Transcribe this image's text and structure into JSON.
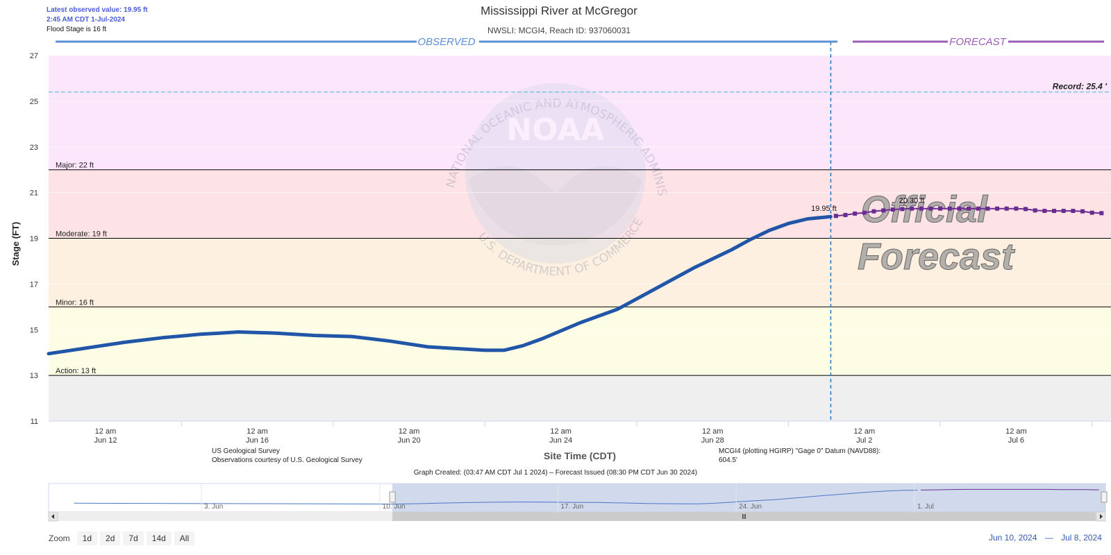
{
  "latest": {
    "line1": "Latest observed value: 19.95 ft",
    "line2": "2:45 AM CDT 1-Jul-2024",
    "line3": "Flood Stage is 16 ft"
  },
  "title": "Mississippi River at McGregor",
  "subtitle": "NWSLI: MCGI4, Reach ID: 937060031",
  "observed_label": "OBSERVED",
  "forecast_label": "FORECAST",
  "record_label": "Record: 25.4 '",
  "watermark": {
    "noaa": "NOAA",
    "ring_top": "NATIONAL OCEANIC AND ATMOSPHERIC ADMINISTRATION",
    "ring_bottom": "U.S. DEPARTMENT OF COMMERCE",
    "official_1": "Official",
    "official_2": "Forecast"
  },
  "credits": {
    "line1": "US Geological Survey",
    "line2": "Observations courtesy of U.S. Geological Survey",
    "datum": "MCGI4 (plotting HGIRP) \"Gage 0\" Datum (NAVD88): 604.5'"
  },
  "graph_created": "Graph Created: (03:47 AM CDT Jul 1 2024) – Forecast Issued (08:30 PM CDT Jun 30 2024)",
  "navigator_labels": [
    "3. Jun",
    "10. Jun",
    "17. Jun",
    "24. Jun",
    "1. Jul"
  ],
  "zoom": {
    "label": "Zoom",
    "buttons": [
      "1d",
      "2d",
      "7d",
      "14d",
      "All"
    ]
  },
  "range": {
    "from": "Jun 10, 2024",
    "sep": "—",
    "to": "Jul 8, 2024"
  },
  "colors": {
    "observed": "#2155a8",
    "forecast": "#6a2c91",
    "major_band": "#fbe6fb",
    "moderate_band": "#fde3e5",
    "minor_band": "#fdf0e0",
    "action_band": "#fdfde6",
    "below_band": "#efefef",
    "record_line": "#5bc0de"
  },
  "chart_data": {
    "type": "line",
    "title": "Mississippi River at McGregor",
    "xlabel": "Site Time (CDT)",
    "ylabel": "Stage (FT)",
    "ylim": [
      11,
      27
    ],
    "xlim_days": [
      "2024-06-10 12:00",
      "2024-07-08 12:00"
    ],
    "yticks": [
      11,
      13,
      15,
      17,
      19,
      21,
      23,
      25,
      27
    ],
    "xtick_labels": [
      {
        "date": "2024-06-12",
        "line1": "12 am",
        "line2": "Jun 12"
      },
      {
        "date": "2024-06-16",
        "line1": "12 am",
        "line2": "Jun 16"
      },
      {
        "date": "2024-06-20",
        "line1": "12 am",
        "line2": "Jun 20"
      },
      {
        "date": "2024-06-24",
        "line1": "12 am",
        "line2": "Jun 24"
      },
      {
        "date": "2024-06-28",
        "line1": "12 am",
        "line2": "Jun 28"
      },
      {
        "date": "2024-07-02",
        "line1": "12 am",
        "line2": "Jul 2"
      },
      {
        "date": "2024-07-06",
        "line1": "12 am",
        "line2": "Jul 6"
      }
    ],
    "thresholds": [
      {
        "name": "Major",
        "value": 22,
        "label": "Major: 22 ft"
      },
      {
        "name": "Moderate",
        "value": 19,
        "label": "Moderate: 19 ft"
      },
      {
        "name": "Minor",
        "value": 16,
        "label": "Minor: 16 ft"
      },
      {
        "name": "Action",
        "value": 13,
        "label": "Action: 13 ft"
      }
    ],
    "record": 25.4,
    "observed_end": "2024-07-01 02:45",
    "observed_end_label": "19.95 ft",
    "forecast_peak_label": "20.30 ft",
    "series": [
      {
        "name": "Observed",
        "x": [
          "2024-06-10 12:00",
          "2024-06-11 12:00",
          "2024-06-12 12:00",
          "2024-06-13 12:00",
          "2024-06-14 12:00",
          "2024-06-15 00:00",
          "2024-06-15 12:00",
          "2024-06-16 12:00",
          "2024-06-17 12:00",
          "2024-06-18 12:00",
          "2024-06-19 00:00",
          "2024-06-19 12:00",
          "2024-06-20 12:00",
          "2024-06-21 00:00",
          "2024-06-21 12:00",
          "2024-06-22 00:00",
          "2024-06-22 12:00",
          "2024-06-23 00:00",
          "2024-06-23 12:00",
          "2024-06-24 12:00",
          "2024-06-25 12:00",
          "2024-06-26 12:00",
          "2024-06-27 12:00",
          "2024-06-28 12:00",
          "2024-06-29 00:00",
          "2024-06-29 12:00",
          "2024-06-30 00:00",
          "2024-06-30 12:00",
          "2024-07-01 02:45"
        ],
        "y": [
          13.95,
          14.2,
          14.45,
          14.65,
          14.8,
          14.85,
          14.9,
          14.85,
          14.75,
          14.7,
          14.6,
          14.5,
          14.25,
          14.2,
          14.15,
          14.1,
          14.1,
          14.3,
          14.6,
          15.3,
          15.9,
          16.8,
          17.7,
          18.5,
          18.95,
          19.35,
          19.65,
          19.85,
          19.95
        ]
      },
      {
        "name": "Forecast",
        "x": [
          "2024-07-01 06:00",
          "2024-07-01 12:00",
          "2024-07-01 18:00",
          "2024-07-02 00:00",
          "2024-07-02 06:00",
          "2024-07-02 12:00",
          "2024-07-02 18:00",
          "2024-07-03 00:00",
          "2024-07-03 06:00",
          "2024-07-03 12:00",
          "2024-07-03 18:00",
          "2024-07-04 00:00",
          "2024-07-04 06:00",
          "2024-07-04 12:00",
          "2024-07-04 18:00",
          "2024-07-05 00:00",
          "2024-07-05 06:00",
          "2024-07-05 12:00",
          "2024-07-05 18:00",
          "2024-07-06 00:00",
          "2024-07-06 06:00",
          "2024-07-06 12:00",
          "2024-07-06 18:00",
          "2024-07-07 00:00",
          "2024-07-07 06:00",
          "2024-07-07 12:00",
          "2024-07-07 18:00",
          "2024-07-08 00:00",
          "2024-07-08 06:00"
        ],
        "y": [
          19.98,
          20.02,
          20.08,
          20.12,
          20.18,
          20.22,
          20.26,
          20.28,
          20.3,
          20.3,
          20.3,
          20.3,
          20.3,
          20.3,
          20.3,
          20.3,
          20.3,
          20.3,
          20.3,
          20.3,
          20.28,
          20.22,
          20.2,
          20.2,
          20.2,
          20.2,
          20.18,
          20.12,
          20.1
        ]
      }
    ]
  }
}
